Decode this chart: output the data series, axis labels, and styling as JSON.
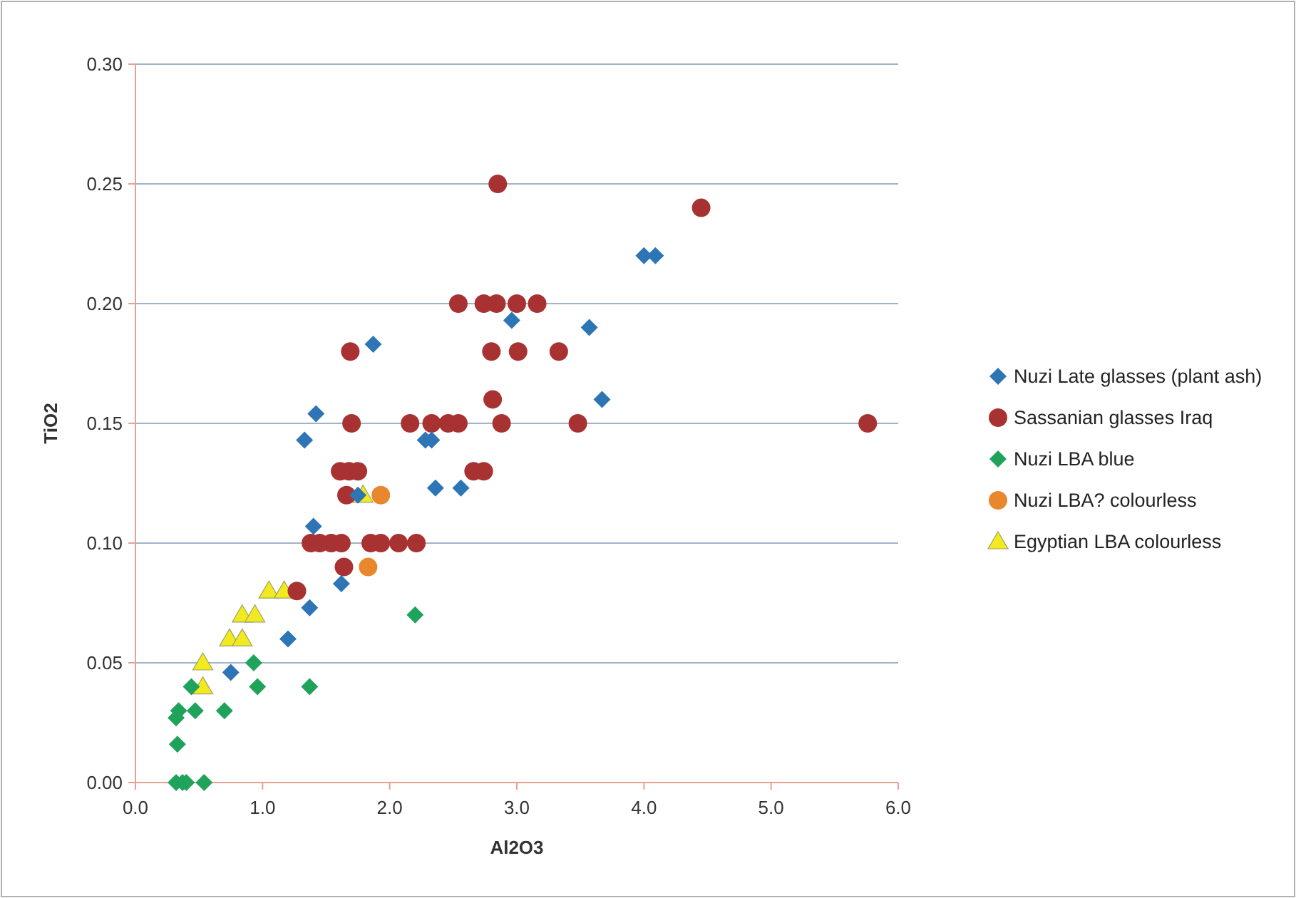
{
  "chart_data": {
    "type": "scatter",
    "xlabel": "Al2O3",
    "ylabel": "TiO2",
    "xlim": [
      0,
      6
    ],
    "xticks": [
      {
        "value": 0,
        "label": "0.0"
      },
      {
        "value": 1,
        "label": "1.0"
      },
      {
        "value": 2,
        "label": "2.0"
      },
      {
        "value": 3,
        "label": "3.0"
      },
      {
        "value": 4,
        "label": "4.0"
      },
      {
        "value": 5,
        "label": "5.0"
      },
      {
        "value": 6,
        "label": "6.0"
      }
    ],
    "ylim": [
      0,
      0.3
    ],
    "yticks": [
      {
        "value": 0,
        "label": "0.00"
      },
      {
        "value": 0.05,
        "label": "0.05"
      },
      {
        "value": 0.1,
        "label": "0.10"
      },
      {
        "value": 0.15,
        "label": "0.15"
      },
      {
        "value": 0.2,
        "label": "0.20"
      },
      {
        "value": 0.25,
        "label": "0.25"
      },
      {
        "value": 0.3,
        "label": "0.30"
      }
    ],
    "grid": "y",
    "legend": "right",
    "series": [
      {
        "name": "Nuzi Late glasses (plant ash)",
        "color": "#2e75b6",
        "marker": "diamond",
        "x": [
          1.33,
          1.42,
          1.87,
          1.4,
          1.37,
          1.2,
          0.75,
          1.62,
          1.75,
          2.28,
          2.33,
          2.36,
          2.56,
          2.96,
          3.57,
          3.67,
          4.0,
          4.09
        ],
        "values": [
          0.143,
          0.154,
          0.183,
          0.107,
          0.073,
          0.06,
          0.046,
          0.083,
          0.12,
          0.143,
          0.143,
          0.123,
          0.123,
          0.193,
          0.19,
          0.16,
          0.22,
          0.22
        ]
      },
      {
        "name": "Sassanian glasses Iraq",
        "color": "#a83232",
        "marker": "circle",
        "x": [
          2.54,
          2.74,
          2.84,
          3.0,
          3.16,
          2.85,
          4.45,
          1.69,
          2.8,
          3.01,
          3.33,
          2.81,
          1.7,
          2.16,
          2.33,
          2.46,
          2.54,
          2.88,
          3.48,
          5.76,
          1.61,
          1.68,
          1.75,
          2.66,
          2.74,
          1.66,
          1.38,
          1.45,
          1.54,
          1.62,
          1.85,
          1.93,
          2.07,
          2.21,
          1.64,
          1.27
        ],
        "values": [
          0.2,
          0.2,
          0.2,
          0.2,
          0.2,
          0.25,
          0.24,
          0.18,
          0.18,
          0.18,
          0.18,
          0.16,
          0.15,
          0.15,
          0.15,
          0.15,
          0.15,
          0.15,
          0.15,
          0.15,
          0.13,
          0.13,
          0.13,
          0.13,
          0.13,
          0.12,
          0.1,
          0.1,
          0.1,
          0.1,
          0.1,
          0.1,
          0.1,
          0.1,
          0.09,
          0.08
        ]
      },
      {
        "name": "Nuzi LBA blue",
        "color": "#1fa35a",
        "marker": "diamond",
        "x": [
          2.2,
          0.93,
          0.44,
          0.96,
          1.37,
          0.34,
          0.47,
          0.7,
          0.32,
          0.33,
          0.32,
          0.37,
          0.4,
          0.54
        ],
        "values": [
          0.07,
          0.05,
          0.04,
          0.04,
          0.04,
          0.03,
          0.03,
          0.03,
          0.027,
          0.016,
          0,
          0,
          0,
          0
        ]
      },
      {
        "name": "Nuzi LBA? colourless",
        "color": "#e8872e",
        "marker": "circle",
        "x": [
          1.93,
          1.83
        ],
        "values": [
          0.12,
          0.09
        ]
      },
      {
        "name": "Egyptian LBA colourless",
        "color": "#f2ea1f",
        "marker": "triangle",
        "x": [
          0.53,
          0.53,
          0.74,
          0.84,
          0.84,
          0.94,
          1.05,
          1.17,
          1.79
        ],
        "values": [
          0.05,
          0.04,
          0.06,
          0.06,
          0.07,
          0.07,
          0.08,
          0.08,
          0.12
        ]
      }
    ]
  }
}
